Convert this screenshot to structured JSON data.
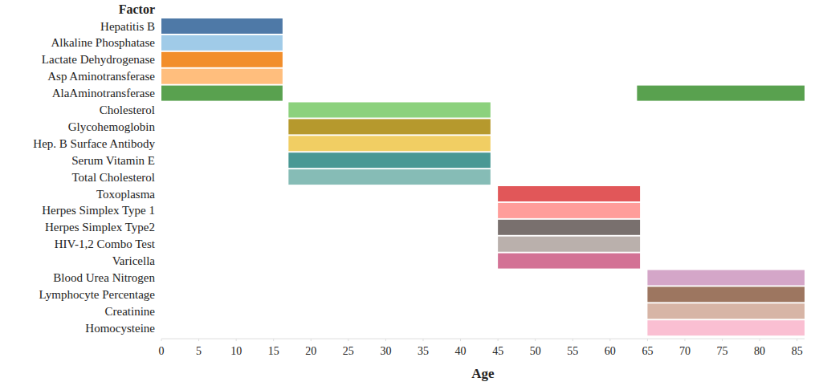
{
  "chart_data": {
    "type": "bar",
    "orientation": "horizontal",
    "y_label": "Factor",
    "x_label": "Age",
    "categories": [
      "Hepatitis B",
      "Alkaline Phosphatase",
      "Lactate Dehydrogenase",
      "Asp Aminotransferase",
      "AlaAminotransferase",
      "Cholesterol",
      "Glycohemoglobin",
      "Hep. B Surface Antibody",
      "Serum Vitamin E",
      "Total Cholesterol",
      "Toxoplasma",
      "Herpes Simplex Type 1",
      "Herpes Simplex Type2",
      "HIV-1,2 Combo Test",
      "Varicella",
      "Blood Urea Nitrogen",
      "Lymphocyte Percentage",
      "Creatinine",
      "Homocysteine"
    ],
    "bars": [
      {
        "category": 0,
        "start": 0,
        "end": 16.2,
        "color": "#4e79a7"
      },
      {
        "category": 1,
        "start": 0,
        "end": 16.2,
        "color": "#a0cbe8"
      },
      {
        "category": 2,
        "start": 0,
        "end": 16.2,
        "color": "#f28e2b"
      },
      {
        "category": 3,
        "start": 0,
        "end": 16.2,
        "color": "#ffbe7d"
      },
      {
        "category": 4,
        "start": 0,
        "end": 16.2,
        "color": "#59a14f"
      },
      {
        "category": 4,
        "start": 63.6,
        "end": 86,
        "color": "#59a14f"
      },
      {
        "category": 5,
        "start": 17,
        "end": 44,
        "color": "#8cd17d"
      },
      {
        "category": 6,
        "start": 17,
        "end": 44,
        "color": "#b6992d"
      },
      {
        "category": 7,
        "start": 17,
        "end": 44,
        "color": "#f1ce63"
      },
      {
        "category": 8,
        "start": 17,
        "end": 44,
        "color": "#499894"
      },
      {
        "category": 9,
        "start": 17,
        "end": 44,
        "color": "#86bcb6"
      },
      {
        "category": 10,
        "start": 45,
        "end": 64,
        "color": "#e15759"
      },
      {
        "category": 11,
        "start": 45,
        "end": 64,
        "color": "#ff9d9a"
      },
      {
        "category": 12,
        "start": 45,
        "end": 64,
        "color": "#79706e"
      },
      {
        "category": 13,
        "start": 45,
        "end": 64,
        "color": "#bab0ac"
      },
      {
        "category": 14,
        "start": 45,
        "end": 64,
        "color": "#d37295"
      },
      {
        "category": 15,
        "start": 65,
        "end": 86,
        "color": "#d4a6c8"
      },
      {
        "category": 16,
        "start": 65,
        "end": 86,
        "color": "#9d7660"
      },
      {
        "category": 17,
        "start": 65,
        "end": 86,
        "color": "#d7b5a6"
      },
      {
        "category": 18,
        "start": 65,
        "end": 86,
        "color": "#fabfd2"
      }
    ],
    "xlim": [
      0,
      86
    ],
    "xticks": [
      0,
      5,
      10,
      15,
      20,
      25,
      30,
      35,
      40,
      45,
      50,
      55,
      60,
      65,
      70,
      75,
      80,
      85
    ]
  }
}
